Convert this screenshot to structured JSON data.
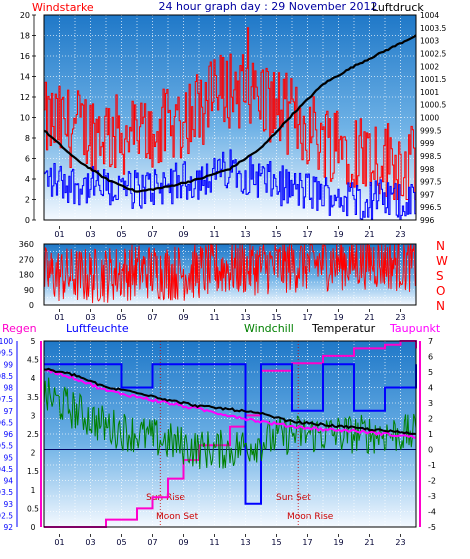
{
  "colors": {
    "wind_gust": "#ff0000",
    "wind_avg": "#0000ff",
    "pressure": "#000000",
    "direction": "#ff0000",
    "rain": "#ff00cc",
    "humidity": "#0000ff",
    "windchill": "#008000",
    "temperature": "#000000",
    "dewpoint": "#ff00ff",
    "title": "#0000a0",
    "bg_top": "#1f78c8",
    "bg_bottom": "#f4f9ff"
  },
  "header": {
    "left_label": "Windstarke",
    "title": "24 hour graph day : 29 November 2012",
    "right_label": "Luftdruck"
  },
  "bottom_header": {
    "rain": "Regen",
    "humidity": "Luftfeuchte",
    "windchill": "Windchill",
    "temperature": "Temperatur",
    "dewpoint": "Taupunkt"
  },
  "hour_labels": [
    "01",
    "03",
    "05",
    "07",
    "09",
    "11",
    "13",
    "15",
    "17",
    "19",
    "21",
    "23"
  ],
  "direction_letters": [
    "N",
    "W",
    "S",
    "O",
    "N"
  ],
  "annotations": {
    "sun_rise": "Sun Rise",
    "moon_set": "Moon Set",
    "sun_set": "Sun Set",
    "moon_rise": "Moon Rise"
  },
  "chart_data": [
    {
      "type": "line",
      "title": "24 hour graph day : 29 November 2012",
      "xlabel": "hour",
      "x_ticks": [
        "01",
        "03",
        "05",
        "07",
        "09",
        "11",
        "13",
        "15",
        "17",
        "19",
        "21",
        "23"
      ],
      "left_axis": {
        "label": "Windstarke",
        "range": [
          0,
          20
        ],
        "ticks": [
          0,
          2,
          4,
          6,
          8,
          10,
          12,
          14,
          16,
          18,
          20
        ]
      },
      "right_axis": {
        "label": "Luftdruck",
        "range": [
          996,
          1004
        ],
        "ticks": [
          996,
          996.5,
          997,
          997.5,
          998,
          998.5,
          999,
          999.5,
          1000,
          1000.5,
          1001,
          1001.5,
          1002,
          1002.5,
          1003,
          1003.5,
          1004
        ]
      },
      "series": [
        {
          "name": "gust",
          "axis": "left",
          "x": [
            0,
            2,
            4,
            6,
            8,
            10,
            12,
            14,
            16,
            18,
            20,
            22,
            24
          ],
          "y": [
            9.5,
            9,
            8.5,
            8,
            9,
            11,
            13,
            12,
            10,
            8,
            7,
            6,
            5
          ]
        },
        {
          "name": "average",
          "axis": "left",
          "x": [
            0,
            2,
            4,
            6,
            8,
            10,
            12,
            14,
            16,
            18,
            20,
            22,
            24
          ],
          "y": [
            4,
            3.5,
            3,
            3,
            3.5,
            4,
            5,
            4,
            3,
            2.5,
            2,
            2,
            1.5
          ]
        },
        {
          "name": "Luftdruck",
          "axis": "right",
          "x": [
            0,
            2,
            4,
            6,
            8,
            10,
            12,
            14,
            16,
            18,
            20,
            22,
            24
          ],
          "y": [
            999.5,
            998.4,
            997.6,
            997.1,
            997.3,
            997.6,
            998,
            998.8,
            1000.1,
            1001.3,
            1002,
            1002.6,
            1003.2
          ]
        }
      ]
    },
    {
      "type": "line",
      "title": "",
      "xlabel": "hour",
      "left_axis": {
        "range": [
          0,
          360
        ],
        "ticks": [
          0,
          45,
          90,
          135,
          180,
          225,
          270,
          315,
          360
        ]
      },
      "right_axis": {
        "tick_labels": [
          "N",
          "W",
          "S",
          "O",
          "N"
        ]
      },
      "series": [
        {
          "name": "wind direction",
          "x": [
            0,
            3,
            6,
            9,
            12,
            15,
            18,
            21,
            24
          ],
          "y": [
            180,
            170,
            200,
            190,
            220,
            230,
            250,
            260,
            240
          ]
        }
      ]
    },
    {
      "type": "line",
      "title": "",
      "xlabel": "hour",
      "rain_axis": {
        "label": "Regen",
        "range": [
          0,
          5
        ],
        "ticks": [
          0,
          0.5,
          1,
          1.5,
          2,
          2.5,
          3,
          3.5,
          4,
          4.5,
          5
        ]
      },
      "humidity_axis": {
        "label": "Luftfeuchte",
        "range": [
          92,
          100
        ],
        "ticks": [
          92,
          92.5,
          93,
          93.5,
          94,
          94.5,
          95,
          95.5,
          96,
          96.5,
          97,
          97.5,
          98,
          98.5,
          99,
          99.5,
          100
        ]
      },
      "temperature_axis": {
        "label": "Temperatur",
        "range": [
          -5,
          7
        ],
        "ticks": [
          -5,
          -4,
          -3,
          -2,
          -1,
          0,
          1,
          2,
          3,
          4,
          5,
          6,
          7
        ]
      },
      "series": [
        {
          "name": "Regen",
          "axis": "rain",
          "x": [
            0,
            2,
            4,
            6,
            7,
            8,
            9,
            10,
            12,
            13,
            14,
            16,
            18,
            20,
            22,
            23,
            24
          ],
          "y": [
            0,
            0,
            0.2,
            0.5,
            0.8,
            1.3,
            1.8,
            2.2,
            2.7,
            3,
            4.2,
            4.4,
            4.6,
            4.8,
            4.9,
            5,
            4.8
          ]
        },
        {
          "name": "Luftfeuchte",
          "axis": "humidity",
          "x": [
            0,
            2,
            4,
            5,
            7,
            9,
            11,
            12,
            13,
            14,
            16,
            18,
            20,
            22,
            24
          ],
          "y": [
            99,
            99,
            99,
            98,
            99,
            99,
            99,
            99,
            93,
            99,
            97,
            99,
            97,
            98,
            99
          ]
        },
        {
          "name": "Windchill",
          "axis": "temperature",
          "x": [
            0,
            2,
            4,
            6,
            8,
            10,
            12,
            14,
            16,
            18,
            20,
            22,
            24
          ],
          "y": [
            3.5,
            2.5,
            1.5,
            1,
            0.5,
            0,
            0,
            0.5,
            1,
            1,
            1,
            1,
            1
          ]
        },
        {
          "name": "Temperatur",
          "axis": "temperature",
          "x": [
            0,
            2,
            4,
            6,
            8,
            10,
            12,
            14,
            16,
            18,
            20,
            22,
            24
          ],
          "y": [
            5.2,
            4.8,
            4,
            3.7,
            3.2,
            2.8,
            2.6,
            2.3,
            1.8,
            1.6,
            1.4,
            1.2,
            1
          ]
        },
        {
          "name": "Taupunkt",
          "axis": "temperature",
          "x": [
            0,
            2,
            4,
            6,
            8,
            10,
            12,
            14,
            16,
            18,
            20,
            22,
            24
          ],
          "y": [
            5.2,
            4.6,
            3.8,
            3.4,
            3,
            2.6,
            2.2,
            1.8,
            1.5,
            1.3,
            1.2,
            1,
            0.8
          ]
        }
      ]
    }
  ]
}
